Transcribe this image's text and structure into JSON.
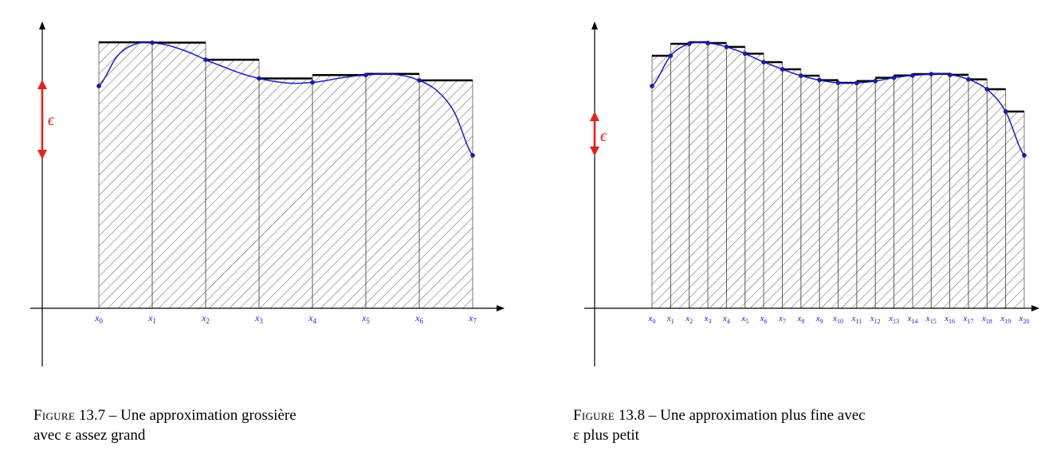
{
  "figures": [
    {
      "id": "fig-13-7",
      "caption": {
        "figure_word": "Figure",
        "number": "13.7",
        "line1": "– Une approximation grossière",
        "line2": "avec ε assez grand"
      },
      "epsilon_label": "ϵ",
      "n": 7,
      "x_labels": [
        "x0",
        "x1",
        "x2",
        "x3",
        "x4",
        "x5",
        "x6",
        "x7"
      ]
    },
    {
      "id": "fig-13-8",
      "caption": {
        "figure_word": "Figure",
        "number": "13.8",
        "line1": "– Une approximation plus fine avec",
        "line2": "ε plus petit"
      },
      "epsilon_label": "ϵ",
      "n": 20,
      "x_labels": [
        "x0",
        "x1",
        "x2",
        "x3",
        "x4",
        "x5",
        "x6",
        "x7",
        "x8",
        "x9",
        "x10",
        "x11",
        "x12",
        "x13",
        "x14",
        "x15",
        "x16",
        "x17",
        "x18",
        "x19",
        "x20"
      ]
    }
  ],
  "colors": {
    "curve": "#1a1acc",
    "epsilon": "#e8201a",
    "axis": "#000000",
    "hatch": "#444444",
    "label": "#1a1acc"
  }
}
